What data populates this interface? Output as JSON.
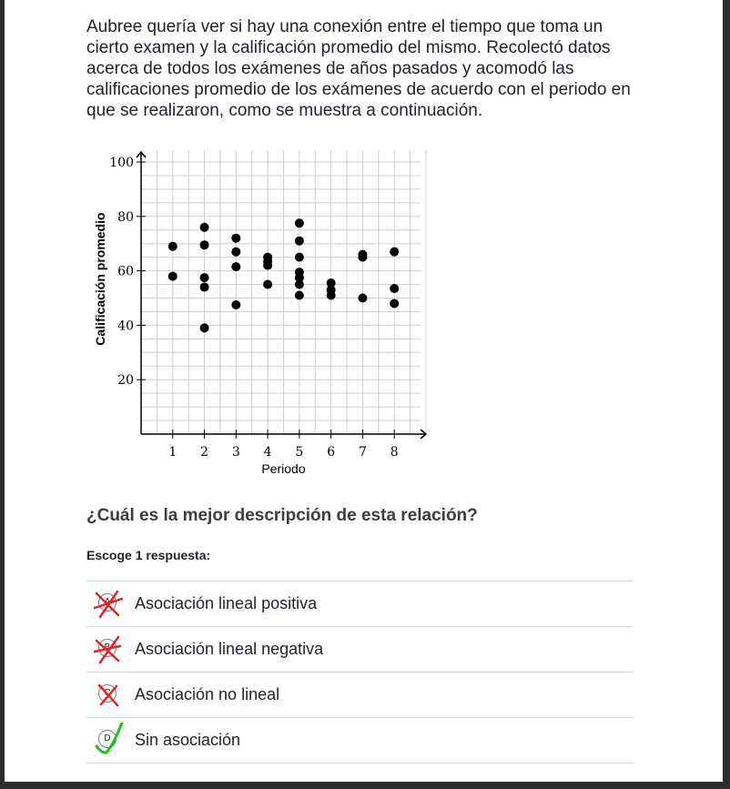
{
  "question_text": "Aubree quería ver si hay una conexión entre el tiempo que toma un cierto examen y la calificación promedio del mismo. Recolectó datos acerca de todos los exámenes de años pasados y acomodó las calificaciones promedio de los exámenes de acuerdo con el periodo en que se realizaron, como se muestra a continuación.",
  "chart_data": {
    "type": "scatter",
    "xlabel": "Periodo",
    "ylabel": "Calificación promedio",
    "xlim": [
      0,
      9
    ],
    "ylim": [
      0,
      100
    ],
    "x_ticks": [
      "1",
      "2",
      "3",
      "4",
      "5",
      "6",
      "7",
      "8"
    ],
    "y_ticks": [
      "20",
      "40",
      "60",
      "80",
      "100"
    ],
    "grid": true,
    "points": [
      {
        "x": 1,
        "y": 69
      },
      {
        "x": 1,
        "y": 58
      },
      {
        "x": 2,
        "y": 76
      },
      {
        "x": 2,
        "y": 69.5
      },
      {
        "x": 2,
        "y": 57.5
      },
      {
        "x": 2,
        "y": 54
      },
      {
        "x": 2,
        "y": 39
      },
      {
        "x": 3,
        "y": 72
      },
      {
        "x": 3,
        "y": 67
      },
      {
        "x": 3,
        "y": 61.5
      },
      {
        "x": 3,
        "y": 47.5
      },
      {
        "x": 4,
        "y": 65
      },
      {
        "x": 4,
        "y": 63.5
      },
      {
        "x": 4,
        "y": 62
      },
      {
        "x": 4,
        "y": 55
      },
      {
        "x": 5,
        "y": 77.5
      },
      {
        "x": 5,
        "y": 71
      },
      {
        "x": 5,
        "y": 65
      },
      {
        "x": 5,
        "y": 59.5
      },
      {
        "x": 5,
        "y": 57.5
      },
      {
        "x": 5,
        "y": 55
      },
      {
        "x": 5,
        "y": 51
      },
      {
        "x": 6,
        "y": 55.5
      },
      {
        "x": 6,
        "y": 53
      },
      {
        "x": 6,
        "y": 51
      },
      {
        "x": 7,
        "y": 66
      },
      {
        "x": 7,
        "y": 65
      },
      {
        "x": 7,
        "y": 50
      },
      {
        "x": 8,
        "y": 67
      },
      {
        "x": 8,
        "y": 53.5
      },
      {
        "x": 8,
        "y": 48
      }
    ]
  },
  "prompt": "¿Cuál es la mejor descripción de esta relación?",
  "instructions": "Escoge 1 respuesta:",
  "choices": [
    {
      "letter": "A",
      "label": "Asociación lineal positiva",
      "mark": "wrong"
    },
    {
      "letter": "B",
      "label": "Asociación lineal negativa",
      "mark": "wrong"
    },
    {
      "letter": "C",
      "label": "Asociación no lineal",
      "mark": "wrong"
    },
    {
      "letter": "D",
      "label": "Sin asociación",
      "mark": "correct"
    }
  ],
  "colors": {
    "wrong_mark": "#e8202a",
    "correct_mark": "#1fc01f",
    "text": "#21242c",
    "grid": "#cfcfcf"
  }
}
